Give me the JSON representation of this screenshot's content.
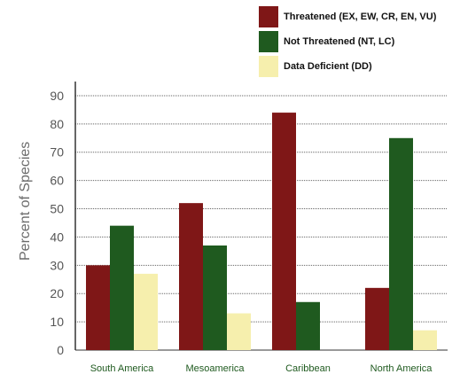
{
  "chart_data": {
    "type": "bar",
    "title": "",
    "xlabel": "",
    "ylabel": "Percent of Species",
    "categories": [
      "South America",
      "Mesoamerica",
      "Caribbean",
      "North America"
    ],
    "series": [
      {
        "name": "Threatened (EX, EW, CR, EN, VU)",
        "color": "#7f1717",
        "values": [
          30,
          52,
          84,
          22
        ]
      },
      {
        "name": "Not Threatened (NT, LC)",
        "color": "#1f5a1f",
        "values": [
          44,
          37,
          17,
          75
        ]
      },
      {
        "name": "Data Deficient (DD)",
        "color": "#f6efad",
        "values": [
          27,
          13,
          0,
          7
        ]
      }
    ],
    "ylim": [
      0,
      95
    ],
    "yticks": [
      0,
      10,
      20,
      30,
      40,
      50,
      60,
      70,
      80,
      90
    ],
    "grid": true,
    "legend": "top-right",
    "category_label_color": "#1f5a1f"
  }
}
